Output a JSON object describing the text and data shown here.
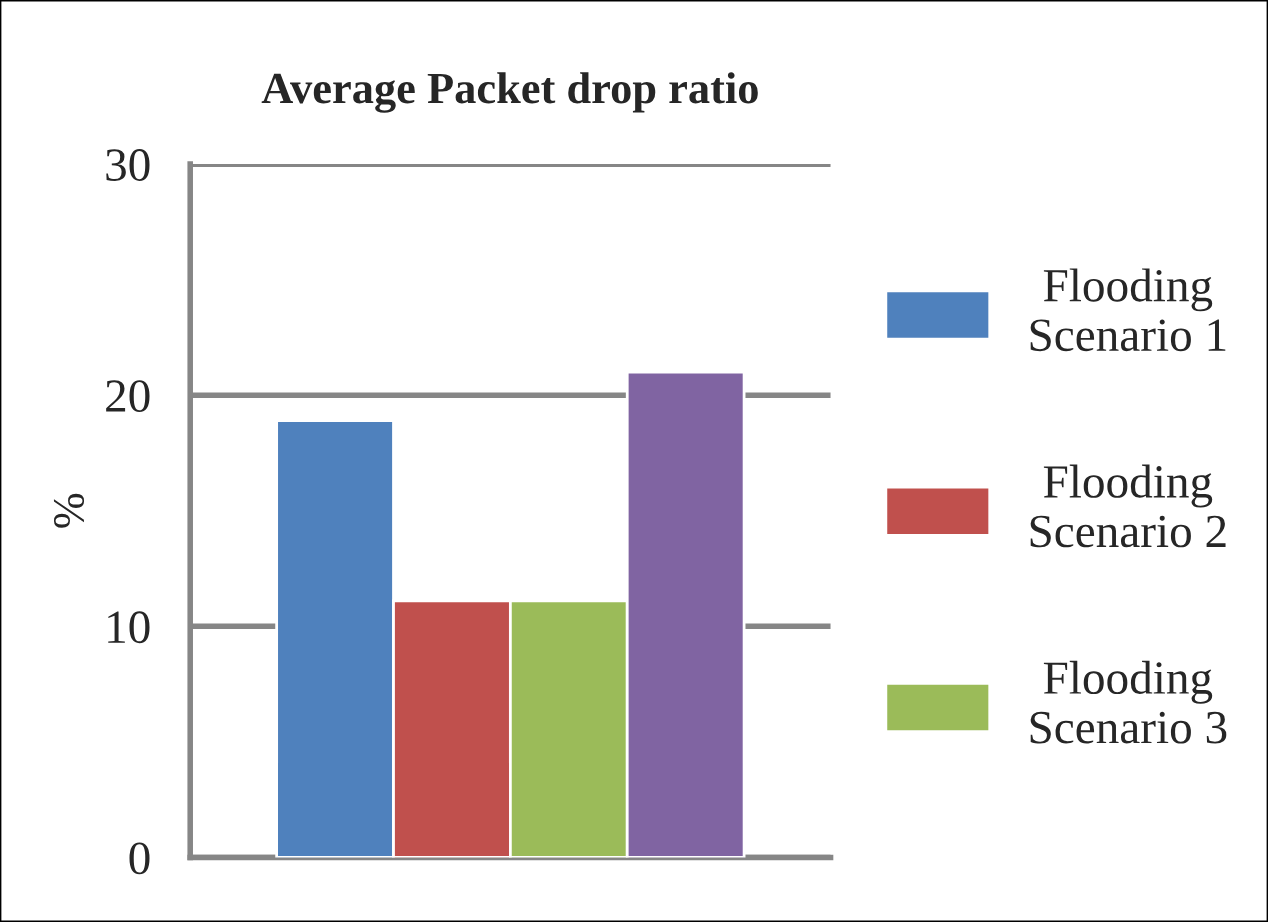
{
  "chart_data": {
    "type": "bar",
    "title": "Average Packet drop ratio",
    "ylabel": "%",
    "categories": [
      null
    ],
    "series": [
      {
        "name": "Flooding\nScenario 1",
        "color": "#4f81bd",
        "values": [
          18.9
        ]
      },
      {
        "name": "Flooding\nScenario 2",
        "color": "#c0504d",
        "values": [
          11.1
        ]
      },
      {
        "name": "Flooding\nScenario 3",
        "color": "#9bbb59",
        "values": [
          11.1
        ]
      },
      {
        "color": "#8064a2",
        "values": [
          21.0
        ]
      }
    ],
    "ylim": [
      0,
      30
    ],
    "yticks": [
      0,
      10,
      20,
      30
    ],
    "grid": "y",
    "legend": "right"
  }
}
